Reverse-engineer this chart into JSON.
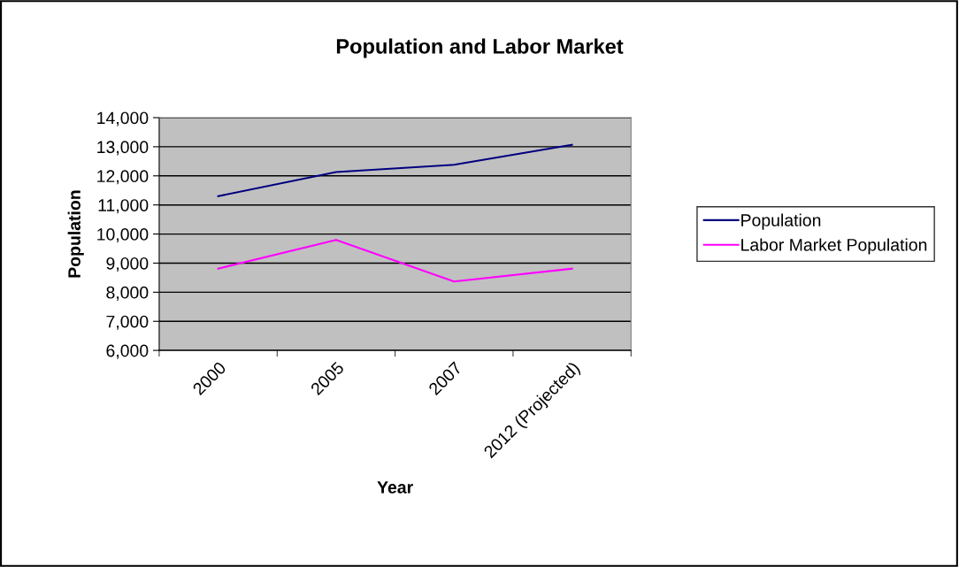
{
  "chart_data": {
    "type": "line",
    "title": "Population and Labor Market",
    "xlabel": "Year",
    "ylabel": "Population",
    "categories": [
      "2000",
      "2005",
      "2007",
      "2012 (Projected)"
    ],
    "series": [
      {
        "name": "Population",
        "color": "#000080",
        "values": [
          11300,
          12130,
          12380,
          13070
        ]
      },
      {
        "name": "Labor Market Population",
        "color": "#ff00ff",
        "values": [
          8810,
          9800,
          8370,
          8810
        ]
      }
    ],
    "ylim": [
      6000,
      14000
    ],
    "yticks": [
      {
        "value": 6000,
        "label": "6,000"
      },
      {
        "value": 7000,
        "label": "7,000"
      },
      {
        "value": 8000,
        "label": "8,000"
      },
      {
        "value": 9000,
        "label": "9,000"
      },
      {
        "value": 10000,
        "label": "10,000"
      },
      {
        "value": 11000,
        "label": "11,000"
      },
      {
        "value": 12000,
        "label": "12,000"
      },
      {
        "value": 13000,
        "label": "13,000"
      },
      {
        "value": 14000,
        "label": "14,000"
      }
    ],
    "grid": "y",
    "legend": "right",
    "marker": "none",
    "line_style": "solid"
  }
}
